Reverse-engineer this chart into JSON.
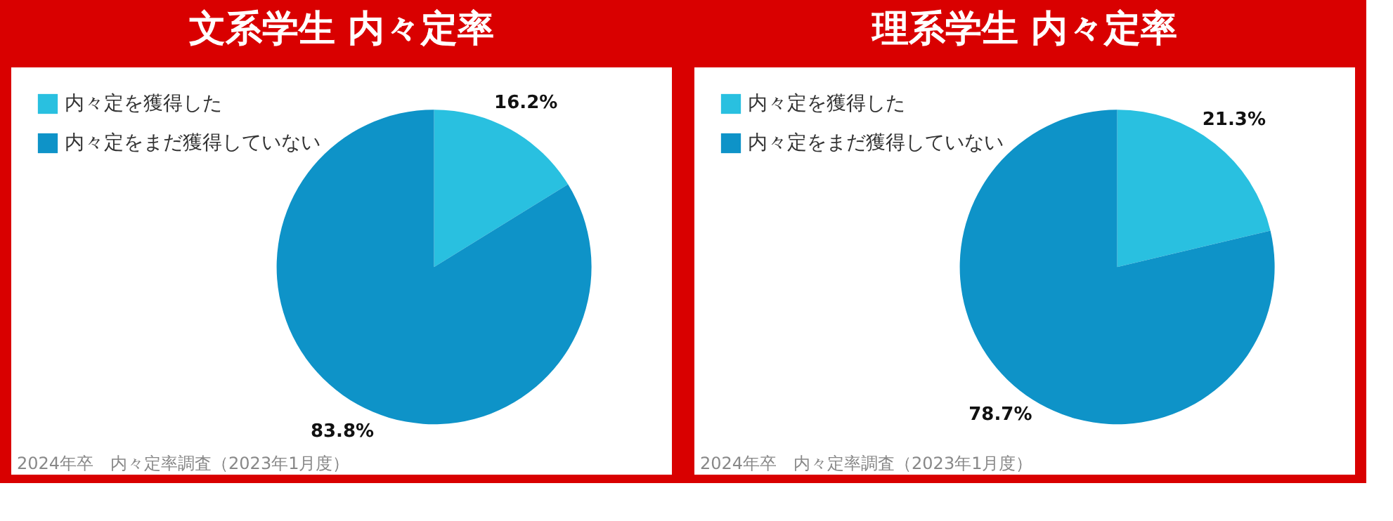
{
  "chart_data": [
    {
      "type": "pie",
      "title": "文系学生 内々定率",
      "categories": [
        "内々定を獲得した",
        "内々定をまだ獲得していない"
      ],
      "values": [
        16.2,
        83.8
      ],
      "colors": [
        "#29c0e0",
        "#0e93c8"
      ],
      "value_labels": [
        "16.2%",
        "83.8%"
      ],
      "legend": "top left",
      "annotations": [
        "2024年卒　内々定率調査（2023年1月度）"
      ]
    },
    {
      "type": "pie",
      "title": "理系学生 内々定率",
      "categories": [
        "内々定を獲得した",
        "内々定をまだ獲得していない"
      ],
      "values": [
        21.3,
        78.7
      ],
      "colors": [
        "#29c0e0",
        "#0e93c8"
      ],
      "value_labels": [
        "21.3%",
        "78.7%"
      ],
      "legend": "top left",
      "annotations": [
        "2024年卒　内々定率調査（2023年1月度）"
      ]
    }
  ]
}
